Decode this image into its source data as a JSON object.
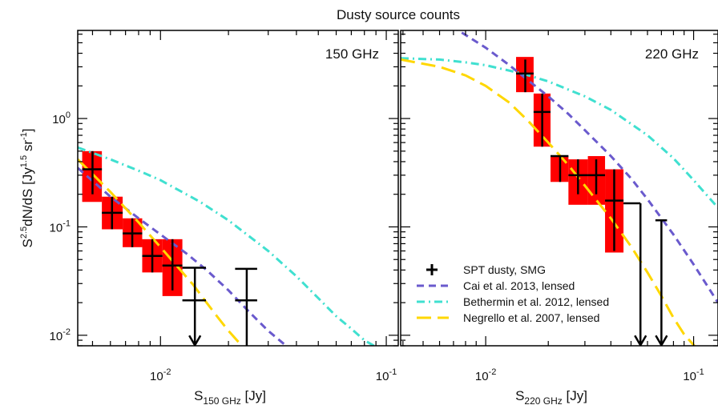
{
  "chart_data": {
    "type": "scatter",
    "title": "Dusty source counts",
    "ylabel": {
      "base": "S",
      "sup": "2.5",
      "mid": "dN/dS [Jy",
      "sup2": "1.5",
      "mid2": " sr",
      "sup3": "-1",
      "end": "]"
    },
    "yscale": "log",
    "ylim": [
      0.008,
      6.5
    ],
    "ytick_labels": [
      {
        "base": "10",
        "exp": "0",
        "value": 1
      },
      {
        "base": "10",
        "exp": "-1",
        "value": 0.1
      },
      {
        "base": "10",
        "exp": "-2",
        "value": 0.01
      }
    ],
    "grid": false,
    "legend": {
      "placement": "bottom-left of right panel",
      "entries": [
        {
          "label": "SPT dusty, SMG",
          "style": "cross",
          "color": "#000000"
        },
        {
          "label": "Cai et al. 2013, lensed",
          "style": "dashed",
          "color": "#6a5acd"
        },
        {
          "label": "Bethermin et al. 2012, lensed",
          "style": "dashdot",
          "color": "#40e0d0"
        },
        {
          "label": "Negrello et al. 2007, lensed",
          "style": "longdash",
          "color": "#ffd700"
        }
      ]
    },
    "panels": [
      {
        "label": "150 GHz",
        "xscale": "log",
        "xlim": [
          0.0043,
          0.113
        ],
        "xlabel": {
          "base": "S",
          "sub": "150 GHz",
          "unit": " [Jy]"
        },
        "xtick_labels": [
          {
            "base": "10",
            "exp": "-2",
            "value": 0.01
          },
          {
            "base": "10",
            "exp": "-1",
            "value": 0.1
          }
        ],
        "boxes": [
          {
            "x0": 0.0045,
            "x1": 0.0055,
            "y0": 0.17,
            "y1": 0.5
          },
          {
            "x0": 0.0055,
            "x1": 0.0068,
            "y0": 0.095,
            "y1": 0.19
          },
          {
            "x0": 0.0068,
            "x1": 0.0083,
            "y0": 0.065,
            "y1": 0.12
          },
          {
            "x0": 0.0083,
            "x1": 0.0102,
            "y0": 0.038,
            "y1": 0.077
          },
          {
            "x0": 0.0102,
            "x1": 0.0125,
            "y0": 0.023,
            "y1": 0.077
          }
        ],
        "points": [
          {
            "x": 0.005,
            "y": 0.34,
            "xerr": [
              0.0045,
              0.0055
            ],
            "yerr": [
              0.2,
              0.5
            ]
          },
          {
            "x": 0.0061,
            "y": 0.135,
            "xerr": [
              0.0055,
              0.0068
            ],
            "yerr": [
              0.095,
              0.19
            ]
          },
          {
            "x": 0.0075,
            "y": 0.087,
            "xerr": [
              0.0068,
              0.0083
            ],
            "yerr": [
              0.065,
              0.12
            ]
          },
          {
            "x": 0.0092,
            "y": 0.054,
            "xerr": [
              0.0083,
              0.0102
            ],
            "yerr": [
              0.038,
              0.077
            ]
          },
          {
            "x": 0.0113,
            "y": 0.044,
            "xerr": [
              0.0102,
              0.0125
            ],
            "yerr": [
              0.026,
              0.077
            ]
          }
        ],
        "upper_limits": [
          {
            "x": 0.0142,
            "y_top": 0.042,
            "y_mid": 0.021,
            "xerr": [
              0.0125,
              0.0159
            ],
            "y_arrow": 0.0081
          },
          {
            "x": 0.0241,
            "y_top": 0.041,
            "y_mid": 0.021,
            "xerr": [
              0.0214,
              0.0268
            ],
            "y_arrow": null
          }
        ],
        "models": [
          {
            "name": "Cai et al. 2013, lensed",
            "color": "#6a5acd",
            "style": "dashed",
            "x": [
              0.0043,
              0.006,
              0.008,
              0.01,
              0.013,
              0.016,
              0.02,
              0.025,
              0.03,
              0.036
            ],
            "y": [
              0.35,
              0.19,
              0.12,
              0.085,
              0.057,
              0.04,
              0.026,
              0.016,
              0.011,
              0.008
            ]
          },
          {
            "name": "Bethermin et al. 2012, lensed",
            "color": "#40e0d0",
            "style": "dashdot",
            "x": [
              0.0043,
              0.006,
              0.008,
              0.01,
              0.015,
              0.02,
              0.03,
              0.04,
              0.05,
              0.06,
              0.07,
              0.08,
              0.09
            ],
            "y": [
              0.54,
              0.42,
              0.33,
              0.27,
              0.17,
              0.115,
              0.06,
              0.035,
              0.022,
              0.015,
              0.0115,
              0.009,
              0.0078
            ]
          },
          {
            "name": "Negrello et al. 2007, lensed",
            "color": "#ffd700",
            "style": "longdash",
            "x": [
              0.0043,
              0.006,
              0.008,
              0.01,
              0.012,
              0.014,
              0.016,
              0.018,
              0.02,
              0.022,
              0.024
            ],
            "y": [
              0.42,
              0.21,
              0.11,
              0.065,
              0.042,
              0.029,
              0.02,
              0.0145,
              0.011,
              0.0088,
              0.0075
            ]
          }
        ]
      },
      {
        "label": "220 GHz",
        "xscale": "log",
        "xlim": [
          0.0039,
          0.131
        ],
        "xlabel": {
          "base": "S",
          "sub": "220 GHz",
          "unit": " [Jy]"
        },
        "xtick_labels": [
          {
            "base": "10",
            "exp": "-2",
            "value": 0.01
          },
          {
            "base": "10",
            "exp": "-1",
            "value": 0.1
          }
        ],
        "boxes": [
          {
            "x0": 0.014,
            "x1": 0.017,
            "y0": 1.75,
            "y1": 3.7
          },
          {
            "x0": 0.017,
            "x1": 0.0205,
            "y0": 0.55,
            "y1": 1.7
          },
          {
            "x0": 0.0205,
            "x1": 0.025,
            "y0": 0.26,
            "y1": 0.45
          },
          {
            "x0": 0.025,
            "x1": 0.031,
            "y0": 0.16,
            "y1": 0.42
          },
          {
            "x0": 0.031,
            "x1": 0.0375,
            "y0": 0.16,
            "y1": 0.45
          },
          {
            "x0": 0.0375,
            "x1": 0.046,
            "y0": 0.058,
            "y1": 0.34
          }
        ],
        "points": [
          {
            "x": 0.0155,
            "y": 2.6,
            "xerr": [
              0.014,
              0.017
            ],
            "yerr": [
              1.75,
              3.5
            ]
          },
          {
            "x": 0.0187,
            "y": 1.15,
            "xerr": [
              0.017,
              0.0205
            ],
            "yerr": [
              0.55,
              1.7
            ]
          },
          {
            "x": 0.0228,
            "y": 0.45,
            "xerr": [
              0.0205,
              0.025
            ],
            "yerr": [
              0.26,
              0.45
            ]
          },
          {
            "x": 0.0278,
            "y": 0.3,
            "xerr": [
              0.025,
              0.031
            ],
            "yerr": [
              0.2,
              0.42
            ]
          },
          {
            "x": 0.034,
            "y": 0.3,
            "xerr": [
              0.031,
              0.0375
            ],
            "yerr": [
              0.2,
              0.42
            ]
          },
          {
            "x": 0.0415,
            "y": 0.175,
            "xerr": [
              0.0375,
              0.046
            ],
            "yerr": [
              0.06,
              0.34
            ]
          }
        ],
        "upper_limits": [
          {
            "x": 0.0555,
            "y_top": 0.165,
            "y_mid": null,
            "xerr": [
              0.046,
              0.0555
            ],
            "y_arrow": 0.0081
          },
          {
            "x": 0.07,
            "y_top": 0.115,
            "y_mid": null,
            "xerr": [
              0.0655,
              0.0745
            ],
            "y_arrow": 0.0081
          }
        ],
        "models": [
          {
            "name": "Cai et al. 2013, lensed",
            "color": "#6a5acd",
            "style": "dashed",
            "x": [
              0.0039,
              0.005,
              0.006,
              0.008,
              0.01,
              0.013,
              0.016,
              0.02,
              0.025,
              0.03,
              0.04,
              0.05,
              0.06,
              0.08,
              0.1,
              0.131
            ],
            "y": [
              14,
              10.5,
              8.3,
              5.9,
              4.5,
              3.1,
              2.25,
              1.6,
              1.1,
              0.78,
              0.45,
              0.28,
              0.18,
              0.085,
              0.045,
              0.02
            ]
          },
          {
            "name": "Bethermin et al. 2012, lensed",
            "color": "#40e0d0",
            "style": "dashdot",
            "x": [
              0.0039,
              0.006,
              0.008,
              0.01,
              0.015,
              0.02,
              0.03,
              0.04,
              0.06,
              0.08,
              0.1,
              0.131
            ],
            "y": [
              3.6,
              3.5,
              3.3,
              3.1,
              2.6,
              2.2,
              1.6,
              1.2,
              0.7,
              0.43,
              0.27,
              0.15
            ]
          },
          {
            "name": "Negrello et al. 2007, lensed",
            "color": "#ffd700",
            "style": "longdash",
            "x": [
              0.0039,
              0.006,
              0.008,
              0.01,
              0.013,
              0.016,
              0.02,
              0.025,
              0.03,
              0.04,
              0.05,
              0.06,
              0.07,
              0.08,
              0.09,
              0.102
            ],
            "y": [
              3.5,
              3.0,
              2.5,
              2.0,
              1.4,
              0.95,
              0.6,
              0.37,
              0.24,
              0.12,
              0.066,
              0.038,
              0.023,
              0.0145,
              0.0102,
              0.0078
            ]
          }
        ]
      }
    ]
  }
}
